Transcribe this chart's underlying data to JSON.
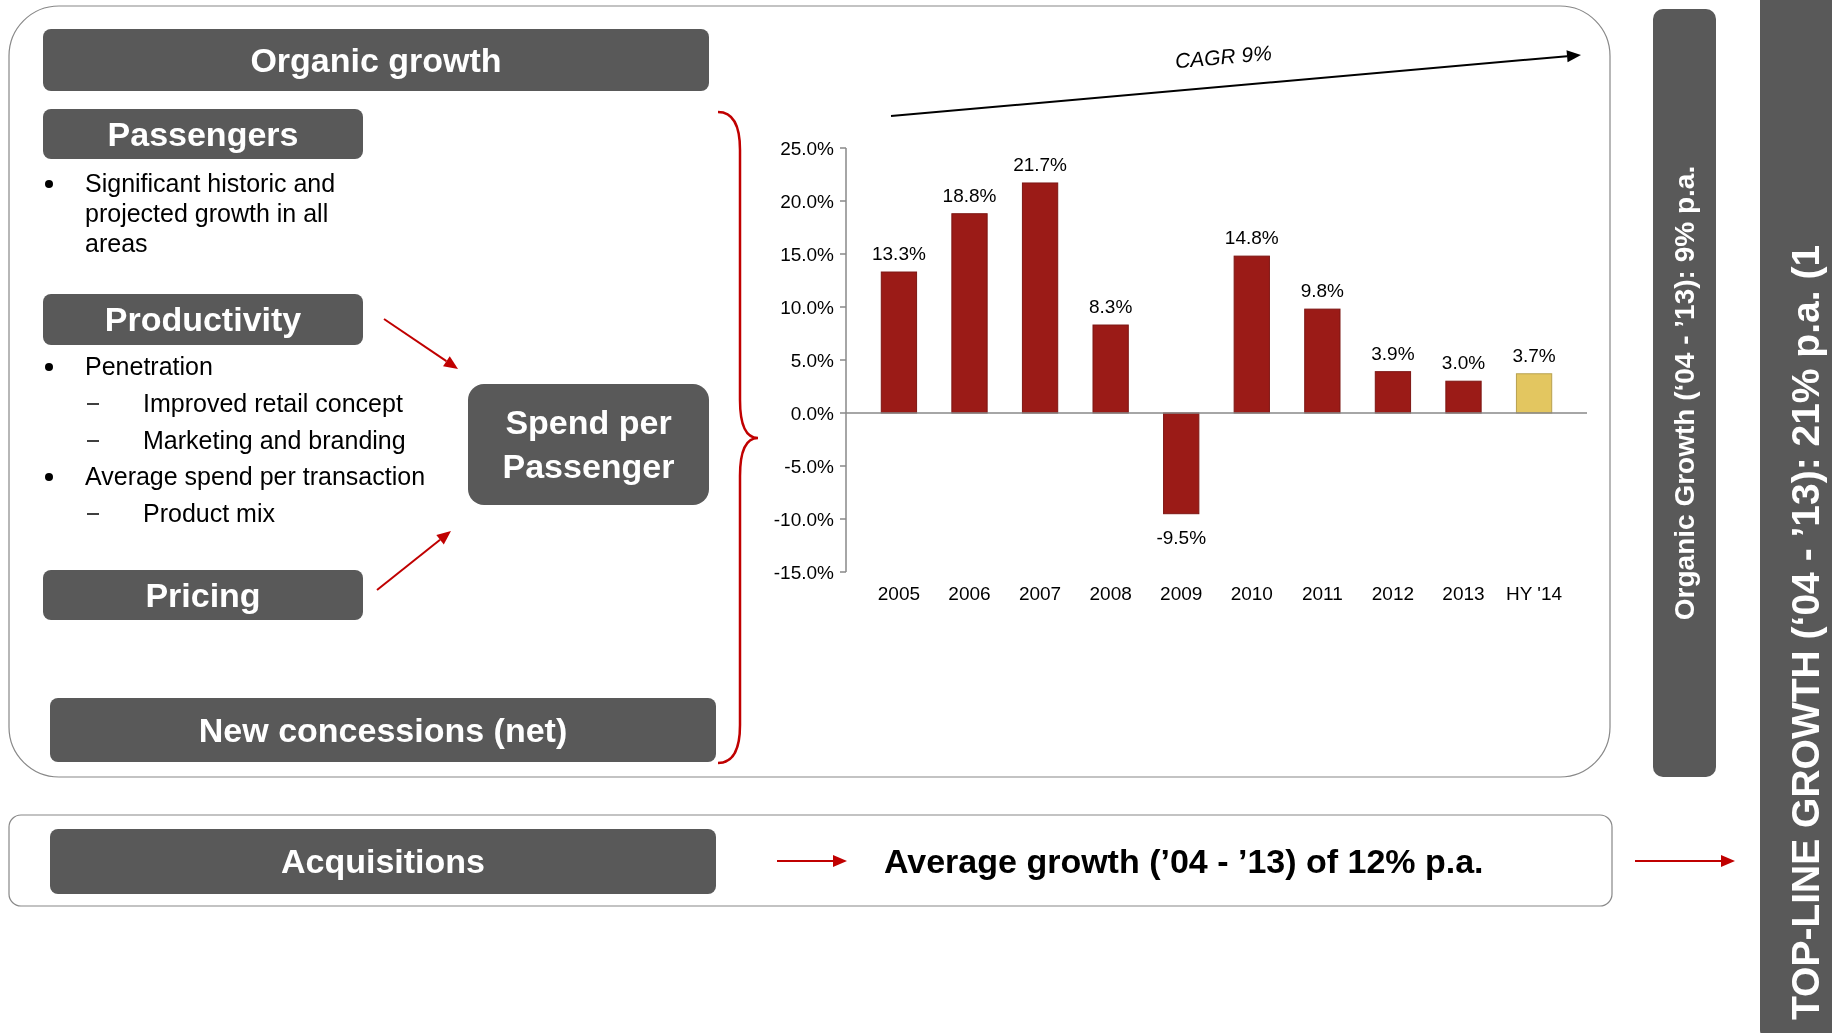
{
  "chart_data": {
    "type": "bar",
    "categories": [
      "2005",
      "2006",
      "2007",
      "2008",
      "2009",
      "2010",
      "2011",
      "2012",
      "2013",
      "HY '14"
    ],
    "values": [
      13.3,
      18.8,
      21.7,
      8.3,
      -9.5,
      14.8,
      9.8,
      3.9,
      3.0,
      3.7
    ],
    "colors": [
      "#9b1b17",
      "#9b1b17",
      "#9b1b17",
      "#9b1b17",
      "#9b1b17",
      "#9b1b17",
      "#9b1b17",
      "#9b1b17",
      "#9b1b17",
      "#e3c660"
    ],
    "value_labels": [
      "13.3%",
      "18.8%",
      "21.7%",
      "8.3%",
      "-9.5%",
      "14.8%",
      "9.8%",
      "3.9%",
      "3.0%",
      "3.7%"
    ],
    "ylim": [
      -15,
      25
    ],
    "yticks": [
      {
        "value": -15,
        "label": "-15.0%"
      },
      {
        "value": -10,
        "label": "-10.0%"
      },
      {
        "value": -5,
        "label": "-5.0%"
      },
      {
        "value": 0,
        "label": "0.0%"
      },
      {
        "value": 5,
        "label": "5.0%"
      },
      {
        "value": 10,
        "label": "10.0%"
      },
      {
        "value": 15,
        "label": "15.0%"
      },
      {
        "value": 20,
        "label": "20.0%"
      },
      {
        "value": 25,
        "label": "25.0%"
      }
    ],
    "annotations": [
      "Organic growth",
      "Passengers",
      "Significant historic and projected growth in all areas",
      "Productivity",
      "Penetration",
      "Improved retail concept",
      "Marketing and branding",
      "Average spend per transaction",
      "Product mix",
      "Pricing",
      "Spend per Passenger",
      "New concessions (net)",
      "Acquisitions",
      "Average growth (’04 - ’13) of 12% p.a.",
      "Organic Growth (‘04 - ’13): 9% p.a.",
      "TOP-LINE GROWTH (‘04 - ’13): 21% p.a. (1",
      "CAGR 9%"
    ]
  }
}
